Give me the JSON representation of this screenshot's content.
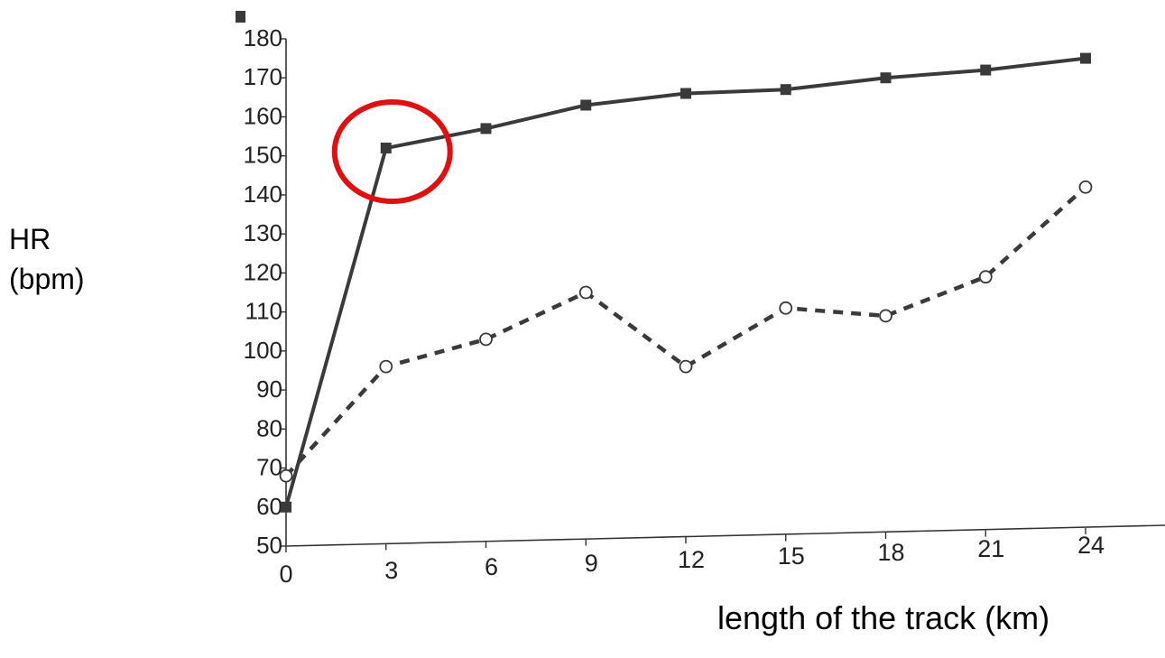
{
  "chart_data": {
    "type": "line",
    "title": "",
    "ylabel_lines": [
      "HR",
      "(bpm)"
    ],
    "xlabel": "length of the track (km)",
    "x": [
      0,
      3,
      6,
      9,
      12,
      15,
      18,
      21,
      24
    ],
    "x_ticks": [
      "0",
      "3",
      "6",
      "9",
      "12",
      "15",
      "18",
      "21",
      "24"
    ],
    "y_ticks": [
      "50",
      "60",
      "70",
      "80",
      "90",
      "100",
      "110",
      "120",
      "130",
      "140",
      "150",
      "160",
      "170",
      "180"
    ],
    "ylim": [
      50,
      180
    ],
    "xlim": [
      0,
      24
    ],
    "grid": false,
    "series": [
      {
        "style": "solid-square",
        "color": "#3a3a3a",
        "values": [
          60,
          152,
          157,
          163,
          166,
          167,
          170,
          172,
          175
        ]
      },
      {
        "style": "dashed-circle",
        "color": "#3a3a3a",
        "values": [
          68,
          96,
          103,
          115,
          96,
          111,
          109,
          119,
          142
        ]
      }
    ],
    "annotations": [
      {
        "type": "circle",
        "color": "#e01010",
        "target_series": 0,
        "target_index": 1
      }
    ]
  }
}
